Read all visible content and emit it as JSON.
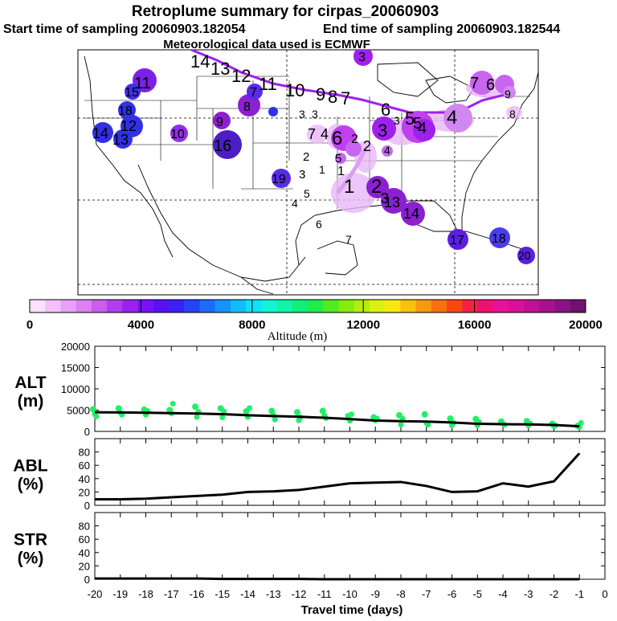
{
  "header": {
    "title": "Retroplume summary for cirpas_20060903",
    "start_label": "Start time of sampling 20060903.182054",
    "end_label": "End time of sampling 20060903.182544",
    "met_label": "Meteorological data used is ECMWF"
  },
  "colors": {
    "plume": "#a020f0",
    "track": "#a020f0",
    "green": "#22ee66",
    "line": "#000000"
  },
  "chart_data": [
    {
      "type": "map",
      "title": "Retroplume summary for cirpas_20060903",
      "label_clusters": [
        {
          "label": "20",
          "color": "#5b1fe0"
        },
        {
          "label": "19",
          "color": "#5a2be6"
        },
        {
          "label": "18",
          "color": "#4a3cf0"
        },
        {
          "label": "17",
          "color": "#5b1fe0"
        },
        {
          "label": "16",
          "color": "#4b1ec8"
        },
        {
          "label": "15",
          "color": "#3022e8"
        },
        {
          "label": "14",
          "color": "#8a20d0"
        },
        {
          "label": "13",
          "color": "#8a20d0"
        },
        {
          "label": "12",
          "color": "#b040f0"
        },
        {
          "label": "11",
          "color": "#a020f0"
        },
        {
          "label": "10",
          "color": "#c040f0"
        },
        {
          "label": "9",
          "color": "#b040f0"
        },
        {
          "label": "8",
          "color": "#c866f0"
        },
        {
          "label": "7",
          "color": "#d088f0"
        },
        {
          "label": "6",
          "color": "#d088f0"
        },
        {
          "label": "5",
          "color": "#d088f0"
        },
        {
          "label": "4",
          "color": "#c866f0"
        },
        {
          "label": "3",
          "color": "#c866f0"
        },
        {
          "label": "2",
          "color": "#d088f0"
        },
        {
          "label": "1",
          "color": "#e0a8f8"
        }
      ]
    },
    {
      "type": "colorbar",
      "xlabel": "Altitude (m)",
      "range": [
        0,
        20000
      ],
      "tick_labels": [
        "0",
        "4000",
        "8000",
        "12000",
        "16000",
        "20000"
      ],
      "colors": [
        "#fde0ff",
        "#f4c0fc",
        "#e8a0f8",
        "#dc80f4",
        "#cc5cf0",
        "#b43cf0",
        "#9c20f0",
        "#7c10f4",
        "#5a10f4",
        "#3c20f4",
        "#2444f8",
        "#1c6cfc",
        "#1494fc",
        "#10bcfc",
        "#10e0f8",
        "#10f4d8",
        "#10f4a8",
        "#10f078",
        "#20ec48",
        "#50ec20",
        "#84ec10",
        "#b4ec10",
        "#dcf010",
        "#f8e810",
        "#f8c010",
        "#f89810",
        "#f87010",
        "#f84810",
        "#f82040",
        "#f01070",
        "#e81098",
        "#d8109c",
        "#c01098",
        "#a81090",
        "#8c1088",
        "#701070"
      ]
    },
    {
      "type": "line",
      "ylabel": "ALT (m)",
      "ylabel_top": "ALT",
      "ylabel_bottom": "(m)",
      "ylim": [
        0,
        20000
      ],
      "yticks": [
        0,
        5000,
        10000,
        15000,
        20000
      ],
      "ytick_labels": [
        "0",
        "5000",
        "10000",
        "15000",
        "20000"
      ],
      "x": [
        -20,
        -19,
        -18,
        -17,
        -16,
        -15,
        -14,
        -13,
        -12,
        -11,
        -10,
        -9,
        -8,
        -7,
        -6,
        -5,
        -4,
        -3,
        -2,
        -1
      ],
      "series": [
        {
          "name": "median",
          "values": [
            4500,
            4450,
            4380,
            4300,
            4200,
            4050,
            3800,
            3600,
            3450,
            3200,
            2900,
            2550,
            2400,
            2300,
            2100,
            1800,
            1700,
            1650,
            1500,
            1200
          ]
        }
      ],
      "scatter_values": [
        [
          5200,
          4000,
          3500
        ],
        [
          5400,
          4400,
          3900
        ],
        [
          5100,
          3900,
          4800
        ],
        [
          5000,
          4200,
          6500
        ],
        [
          5800,
          3400,
          4600
        ],
        [
          5400,
          3300,
          4700
        ],
        [
          4700,
          3400,
          5500
        ],
        [
          4800,
          3800,
          2800
        ],
        [
          4500,
          2600,
          3300
        ],
        [
          4800,
          3800,
          3100
        ],
        [
          3600,
          2500,
          4000
        ],
        [
          3300,
          2600,
          3000
        ],
        [
          3800,
          1600,
          3000
        ],
        [
          4000,
          2000,
          1600
        ],
        [
          3000,
          1400,
          2000
        ],
        [
          2900,
          1400,
          2200
        ],
        [
          2300,
          1800,
          1500
        ],
        [
          2400,
          1400,
          1900
        ],
        [
          1800,
          1200,
          1400
        ],
        [
          1300,
          1000,
          2000
        ]
      ]
    },
    {
      "type": "line",
      "ylabel": "ABL (%)",
      "ylabel_top": "ABL",
      "ylabel_bottom": "(%)",
      "ylim": [
        0,
        100
      ],
      "yticks": [
        0,
        20,
        40,
        60,
        80
      ],
      "ytick_labels": [
        "0",
        "20",
        "40",
        "60",
        "80"
      ],
      "x": [
        -20,
        -19,
        -18,
        -17,
        -16,
        -15,
        -14,
        -13,
        -12,
        -11,
        -10,
        -9,
        -8,
        -7,
        -6,
        -5,
        -4,
        -3,
        -2,
        -1
      ],
      "series": [
        {
          "name": "ABL",
          "values": [
            9,
            9,
            10,
            12,
            14,
            16,
            20,
            21,
            23,
            28,
            33,
            34,
            35,
            29,
            20,
            21,
            33,
            28,
            36,
            78
          ]
        }
      ]
    },
    {
      "type": "line",
      "ylabel": "STR (%)",
      "ylabel_top": "STR",
      "ylabel_bottom": "(%)",
      "xlabel": "Travel time (days)",
      "ylim": [
        0,
        100
      ],
      "yticks": [
        0,
        20,
        40,
        60,
        80
      ],
      "ytick_labels": [
        "0",
        "20",
        "40",
        "60",
        "80"
      ],
      "x": [
        -20,
        -19,
        -18,
        -17,
        -16,
        -15,
        -14,
        -13,
        -12,
        -11,
        -10,
        -9,
        -8,
        -7,
        -6,
        -5,
        -4,
        -3,
        -2,
        -1
      ],
      "xtick_labels": [
        "-20",
        "-19",
        "-18",
        "-17",
        "-16",
        "-15",
        "-14",
        "-13",
        "-12",
        "-11",
        "-10",
        "-9",
        "-8",
        "-7",
        "-6",
        "-5",
        "-4",
        "-3",
        "-2",
        "-1",
        "0"
      ],
      "series": [
        {
          "name": "STR",
          "values": [
            1,
            1,
            1,
            1,
            1,
            0.5,
            0.5,
            0.5,
            0.5,
            0,
            0,
            0,
            0,
            0,
            0,
            0,
            0,
            0,
            0,
            0
          ]
        }
      ]
    }
  ]
}
